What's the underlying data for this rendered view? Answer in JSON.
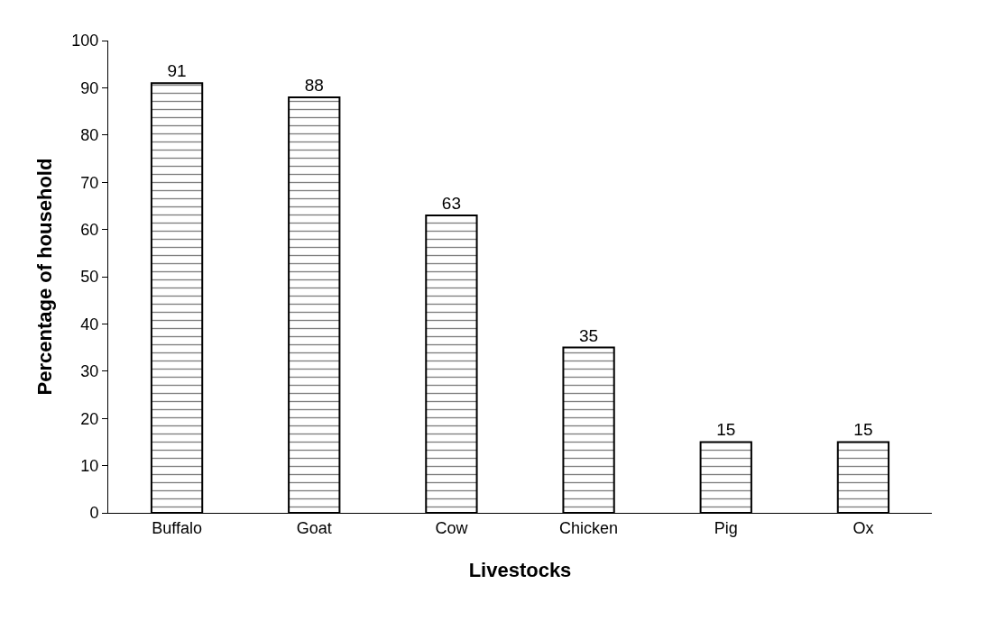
{
  "chart_data": {
    "type": "bar",
    "xlabel": "Livestocks",
    "ylabel": "Percentage of household",
    "categories": [
      "Buffalo",
      "Goat",
      "Cow",
      "Chicken",
      "Pig",
      "Ox"
    ],
    "values": [
      91,
      88,
      63,
      35,
      15,
      15
    ],
    "ylim": [
      0,
      100
    ],
    "yticks": [
      0,
      10,
      20,
      30,
      40,
      50,
      60,
      70,
      80,
      90,
      100
    ],
    "data_labels": true
  }
}
